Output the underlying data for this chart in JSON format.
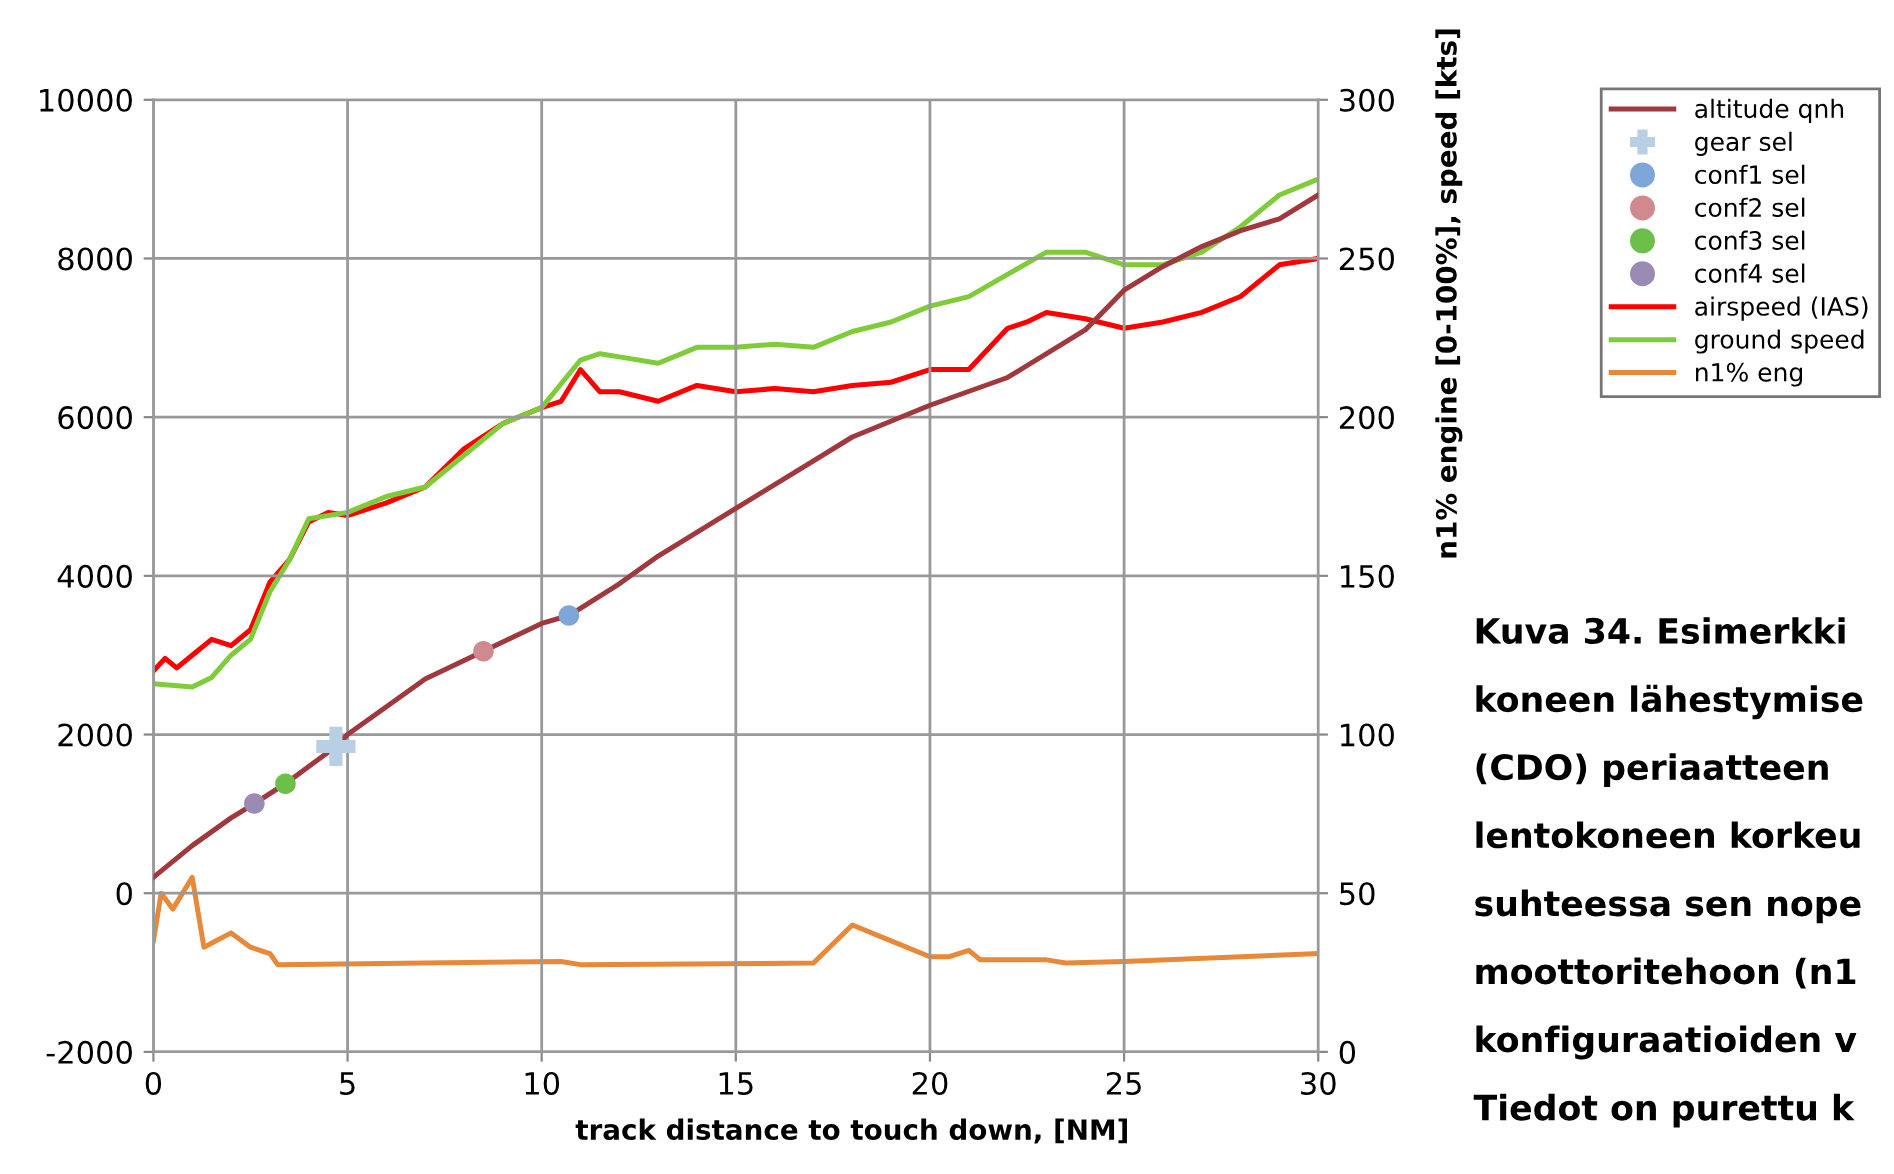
{
  "chart_data": {
    "type": "line",
    "xlabel": "track distance to touch down, [NM]",
    "y2label": "n1% engine [0-100%], speed [kts]",
    "xlim": [
      0,
      30
    ],
    "xticks": [
      0,
      5,
      10,
      15,
      20,
      25,
      30
    ],
    "ylim": [
      -2000,
      10000
    ],
    "yticks": [
      -2000,
      0,
      2000,
      4000,
      6000,
      8000,
      10000
    ],
    "y2lim": [
      0,
      300
    ],
    "y2ticks": [
      0,
      50,
      100,
      150,
      200,
      250,
      300
    ],
    "grid": true,
    "legend": "right",
    "line_style": "solid",
    "series": [
      {
        "name": "altitude qnh",
        "color": "#a0393e",
        "marker": "none",
        "x": [
          0,
          1,
          2,
          2.6,
          3.4,
          4.7,
          5,
          6,
          7,
          8.5,
          10,
          10.7,
          12,
          13,
          15,
          17,
          18,
          20,
          22,
          24,
          25,
          26,
          27,
          28,
          29,
          30
        ],
        "values": [
          200,
          600,
          950,
          1130,
          1380,
          1850,
          2000,
          2350,
          2700,
          3050,
          3400,
          3500,
          3900,
          4250,
          4850,
          5450,
          5750,
          6150,
          6500,
          7100,
          7600,
          7900,
          8150,
          8350,
          8500,
          8800
        ]
      },
      {
        "name": "gear sel",
        "type": "scatter",
        "color": "#b8cfe6",
        "marker": "cross",
        "x": [
          4.7
        ],
        "values": [
          1850
        ]
      },
      {
        "name": "conf1 sel",
        "type": "scatter",
        "color": "#7ea6d8",
        "marker": "circle",
        "x": [
          10.7
        ],
        "values": [
          3500
        ]
      },
      {
        "name": "conf2 sel",
        "type": "scatter",
        "color": "#d08a8f",
        "marker": "circle",
        "x": [
          8.5
        ],
        "values": [
          3050
        ]
      },
      {
        "name": "conf3 sel",
        "type": "scatter",
        "color": "#6cc04a",
        "marker": "circle",
        "x": [
          3.4
        ],
        "values": [
          1380
        ]
      },
      {
        "name": "conf4 sel",
        "type": "scatter",
        "color": "#9b8bb4",
        "marker": "circle",
        "x": [
          2.6
        ],
        "values": [
          1130
        ]
      },
      {
        "name": "airspeed (IAS)",
        "axis": "y2",
        "color": "#ff0000",
        "marker": "none",
        "x": [
          0,
          0.3,
          0.6,
          1,
          1.5,
          2,
          2.5,
          3,
          3.5,
          4,
          4.5,
          5,
          6,
          7,
          8,
          9,
          10,
          10.5,
          11,
          11.5,
          12,
          13,
          14,
          15,
          16,
          17,
          18,
          19,
          20,
          21,
          22,
          22.5,
          23,
          24,
          25,
          26,
          27,
          28,
          29,
          30
        ],
        "values": [
          120,
          124,
          121,
          125,
          130,
          128,
          133,
          148,
          155,
          167,
          170,
          169,
          173,
          178,
          190,
          198,
          203,
          205,
          215,
          208,
          208,
          205,
          210,
          208,
          209,
          208,
          210,
          211,
          215,
          215,
          228,
          230,
          233,
          231,
          228,
          230,
          233,
          238,
          248,
          250
        ]
      },
      {
        "name": "ground speed",
        "axis": "y2",
        "color": "#7fcc3a",
        "marker": "none",
        "x": [
          0,
          1,
          1.5,
          2,
          2.5,
          3,
          3.5,
          4,
          5,
          6,
          7,
          8,
          9,
          10,
          11,
          11.5,
          12,
          13,
          14,
          15,
          16,
          17,
          18,
          19,
          20,
          21,
          22,
          23,
          24,
          25,
          26,
          27,
          28,
          29,
          30
        ],
        "values": [
          116,
          115,
          118,
          125,
          130,
          145,
          155,
          168,
          170,
          175,
          178,
          188,
          198,
          203,
          218,
          220,
          219,
          217,
          222,
          222,
          223,
          222,
          227,
          230,
          235,
          238,
          245,
          252,
          252,
          248,
          248,
          252,
          260,
          270,
          275
        ]
      },
      {
        "name": "n1% eng",
        "axis": "y2",
        "color": "#e8893a",
        "marker": "none",
        "x": [
          0,
          0.2,
          0.5,
          1,
          1.3,
          2,
          2.5,
          3,
          3.2,
          10.5,
          11,
          17,
          18,
          19,
          20,
          20.5,
          21,
          21.3,
          23,
          23.5,
          25,
          30
        ],
        "values": [
          35,
          50,
          45,
          55,
          33,
          37.5,
          33,
          31,
          27.5,
          28.5,
          27.5,
          28,
          40,
          35,
          30,
          30,
          32,
          29,
          29,
          28,
          28.5,
          31
        ]
      }
    ],
    "annotations": [
      "Kuva 34. Esimerkki",
      "koneen lähestymise",
      "(CDO) periaatteen",
      "lentokoneen korkeu",
      "suhteessa sen nope",
      "moottoritehoon (n1",
      "konfiguraatioiden v",
      "Tiedot on purettu k"
    ]
  }
}
